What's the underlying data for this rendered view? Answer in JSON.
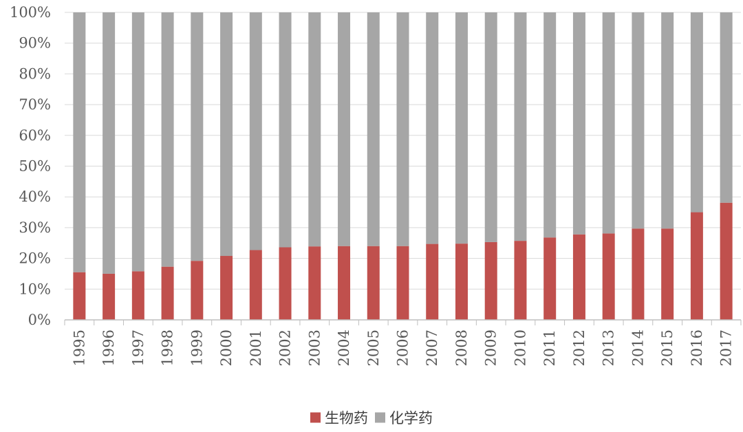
{
  "chart_data": {
    "type": "bar",
    "stacked": true,
    "percent_stacked": true,
    "categories": [
      "1995",
      "1996",
      "1997",
      "1998",
      "1999",
      "2000",
      "2001",
      "2002",
      "2003",
      "2004",
      "2005",
      "2006",
      "2007",
      "2008",
      "2009",
      "2010",
      "2011",
      "2012",
      "2013",
      "2014",
      "2015",
      "2016",
      "2017"
    ],
    "series": [
      {
        "name": "生物药",
        "color": "#c0504d",
        "values": [
          15.5,
          15,
          15.8,
          17.3,
          19.2,
          20.8,
          22.7,
          23.6,
          23.9,
          24,
          24,
          24,
          24.7,
          24.8,
          25.3,
          25.7,
          26.8,
          27.8,
          28.1,
          29.7,
          29.7,
          35,
          38.1
        ]
      },
      {
        "name": "化学药",
        "color": "#a6a6a6",
        "values": [
          84.5,
          85,
          84.2,
          82.7,
          80.8,
          79.2,
          77.3,
          76.4,
          76.1,
          76,
          76,
          76,
          75.3,
          75.2,
          74.7,
          74.3,
          73.2,
          72.2,
          71.9,
          70.3,
          70.3,
          65,
          61.9
        ]
      }
    ],
    "y_ticks": [
      "0%",
      "10%",
      "20%",
      "30%",
      "40%",
      "50%",
      "60%",
      "70%",
      "80%",
      "90%",
      "100%"
    ],
    "ylim": [
      0,
      100
    ],
    "grid": true,
    "legend_position": "bottom",
    "axis_color": "#bfbfbf",
    "grid_color": "#d9d9d9"
  }
}
